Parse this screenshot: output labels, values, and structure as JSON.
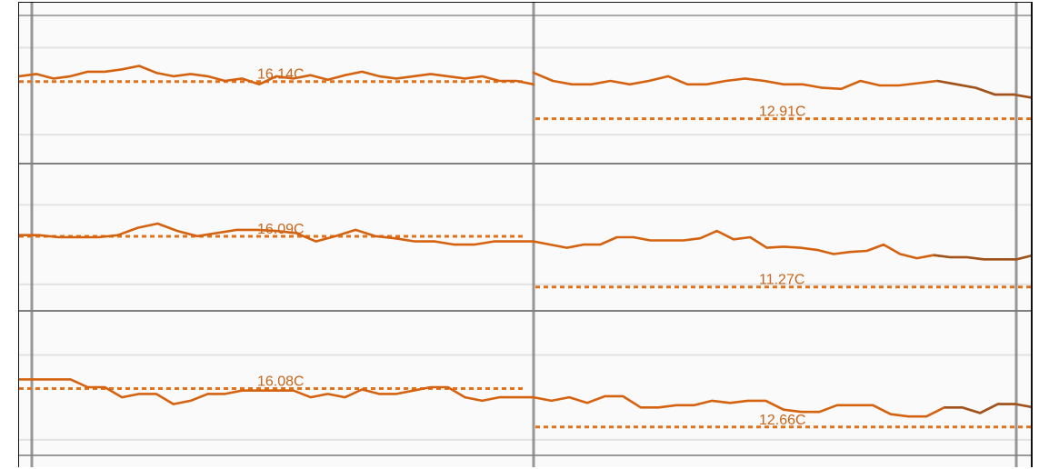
{
  "colors": {
    "line": "#d4620f",
    "line_dark": "#8a4f24",
    "mean_line": "#e0731c",
    "label": "#c8651a",
    "plot_bg": "#fafafa",
    "grid_major": "#7f7f7f",
    "grid_minor": "#e3e3e3"
  },
  "chart_data": {
    "type": "line",
    "grid": true,
    "periods": 2,
    "rows": [
      {
        "name": "",
        "averages": [
          {
            "label": "16.14C",
            "value": 16.14
          },
          {
            "label": "12.91C",
            "value": 12.91
          }
        ],
        "series": [
          [
            16.6,
            16.8,
            16.4,
            16.6,
            17.0,
            17.0,
            17.2,
            17.5,
            16.9,
            16.6,
            16.8,
            16.6,
            16.2,
            16.4,
            15.9,
            16.6,
            16.4,
            16.7,
            16.3,
            16.7,
            17.0,
            16.6,
            16.4,
            16.6,
            16.8,
            16.6,
            16.4,
            16.6,
            16.2,
            16.2,
            15.9
          ],
          [
            16.9,
            16.2,
            15.9,
            15.9,
            16.2,
            15.9,
            16.2,
            16.6,
            15.9,
            15.9,
            16.2,
            16.4,
            16.2,
            15.9,
            15.9,
            15.6,
            15.5,
            16.2,
            15.8,
            15.8,
            16.0,
            16.2,
            15.9,
            15.6,
            15.0,
            15.0,
            14.7
          ]
        ]
      },
      {
        "name": "",
        "averages": [
          {
            "label": "16.09C",
            "value": 16.09
          },
          {
            "label": "11.27C",
            "value": 11.27
          }
        ],
        "series": [
          [
            16.2,
            16.2,
            16.0,
            16.0,
            16.0,
            16.2,
            16.9,
            17.3,
            16.6,
            16.1,
            16.4,
            16.7,
            16.7,
            16.6,
            16.4,
            15.6,
            16.1,
            16.7,
            16.1,
            15.9,
            15.6,
            15.6,
            15.3,
            15.3,
            15.6,
            15.6,
            15.6
          ],
          [
            15.6,
            15.3,
            15.0,
            15.3,
            15.3,
            16.0,
            16.0,
            15.7,
            15.7,
            15.7,
            15.9,
            16.6,
            15.8,
            16.0,
            15.0,
            15.1,
            15.0,
            14.8,
            14.4,
            14.6,
            14.7,
            15.3,
            14.4,
            14.0,
            14.3,
            14.1,
            14.1,
            13.9,
            13.9,
            13.9,
            14.3
          ]
        ]
      },
      {
        "name": "",
        "averages": [
          {
            "label": "16.08C",
            "value": 16.08
          },
          {
            "label": "12.66C",
            "value": 12.66
          }
        ],
        "series": [
          [
            16.9,
            16.9,
            16.9,
            16.9,
            16.2,
            16.2,
            15.3,
            15.6,
            15.6,
            14.7,
            15.0,
            15.6,
            15.6,
            15.9,
            15.9,
            15.9,
            15.9,
            15.3,
            15.6,
            15.3,
            16.0,
            15.6,
            15.6,
            15.9,
            16.2,
            16.2,
            15.3,
            15.0,
            15.3,
            15.3,
            15.3
          ],
          [
            15.3,
            15.0,
            15.3,
            14.8,
            15.4,
            15.4,
            14.4,
            14.4,
            14.6,
            14.6,
            15.0,
            14.8,
            15.0,
            15.0,
            14.2,
            14.0,
            14.0,
            14.6,
            14.6,
            14.6,
            13.8,
            13.6,
            13.6,
            14.4,
            14.4,
            13.9,
            14.7,
            14.7,
            14.4
          ]
        ]
      }
    ]
  }
}
